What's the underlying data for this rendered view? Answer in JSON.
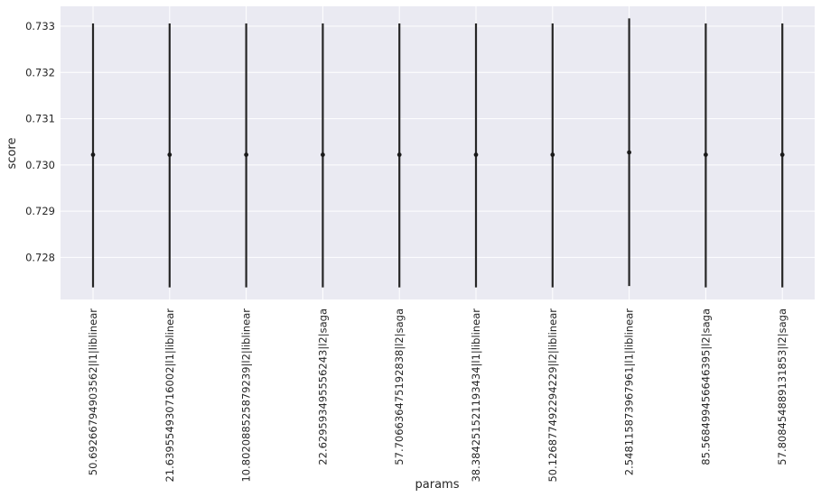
{
  "chart_data": {
    "type": "scatter",
    "style": "errorbar",
    "xlabel": "params",
    "ylabel": "score",
    "categories": [
      "50.69266794903562|l1|liblinear",
      "21.639554930716002|l1|liblinear",
      "10.802088525879239|l2|liblinear",
      "22.629593495556243|l2|saga",
      "57.706636475192838|l2|saga",
      "38.384251521193434|l1|liblinear",
      "50.126877492294229|l2|liblinear",
      "2.548115873967961|l1|liblinear",
      "85.568499456646395|l2|saga",
      "57.808454889131853|l2|saga"
    ],
    "values": [
      0.73022,
      0.73022,
      0.73022,
      0.73022,
      0.73022,
      0.73022,
      0.73022,
      0.73027,
      0.73022,
      0.73022
    ],
    "error_low": [
      0.72735,
      0.72735,
      0.72735,
      0.72735,
      0.72735,
      0.72735,
      0.72735,
      0.72738,
      0.72735,
      0.72735
    ],
    "error_high": [
      0.73306,
      0.73306,
      0.73306,
      0.73306,
      0.73306,
      0.73306,
      0.73306,
      0.73317,
      0.73306,
      0.73306
    ],
    "yticks": [
      "0.728",
      "0.729",
      "0.730",
      "0.731",
      "0.732",
      "0.733"
    ],
    "ylim": [
      0.72709,
      0.73343
    ],
    "grid": true,
    "colors": {
      "background": "#eaeaf2",
      "grid": "#ffffff",
      "marker": "#1a1a1a",
      "errorbar": "#262626"
    }
  }
}
